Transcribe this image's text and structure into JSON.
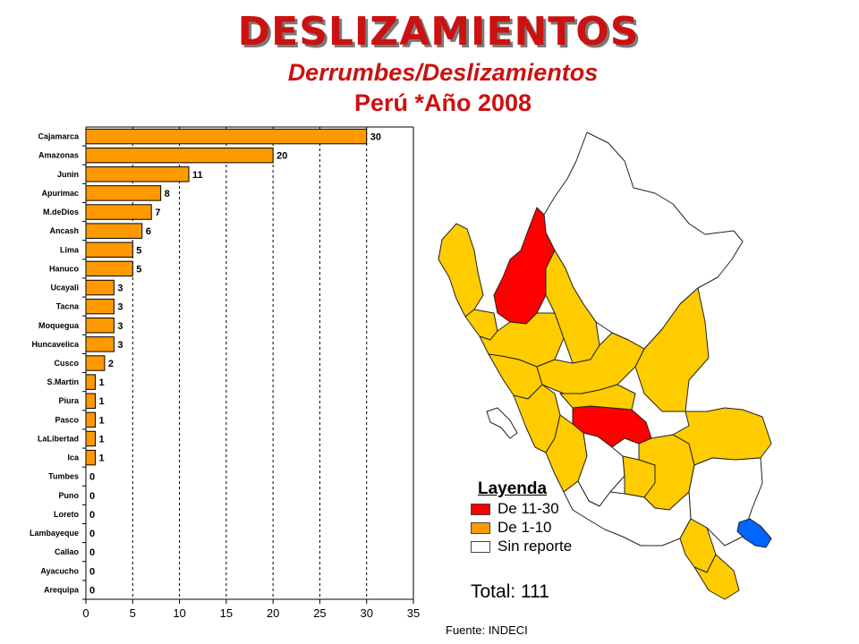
{
  "header": {
    "title": "DESLIZAMIENTOS",
    "subtitle": "Derrumbes/Deslizamientos",
    "subtitle2": "Perú *Año 2008"
  },
  "chart_data": {
    "type": "bar",
    "orientation": "horizontal",
    "categories": [
      "Cajamarca",
      "Amazonas",
      "Junin",
      "Apurimac",
      "M.deDios",
      "Ancash",
      "Lima",
      "Hanuco",
      "Ucayali",
      "Tacna",
      "Moquegua",
      "Huncavelica",
      "Cusco",
      "S.Martin",
      "Piura",
      "Pasco",
      "LaLibertad",
      "Ica",
      "Tumbes",
      "Puno",
      "Loreto",
      "Lambayeque",
      "Callao",
      "Ayacucho",
      "Arequipa"
    ],
    "values": [
      30,
      20,
      11,
      8,
      7,
      6,
      5,
      5,
      3,
      3,
      3,
      3,
      2,
      1,
      1,
      1,
      1,
      1,
      0,
      0,
      0,
      0,
      0,
      0,
      0
    ],
    "xlim": [
      0,
      35
    ],
    "xticks": [
      0,
      5,
      10,
      15,
      20,
      25,
      30,
      35
    ],
    "grid": "vertical dashed",
    "bar_color": "#ff9900"
  },
  "legend": {
    "title": "Layenda",
    "items": [
      {
        "label": "De 11-30",
        "color": "#ff0000"
      },
      {
        "label": "De 1-10",
        "color": "#ff9900"
      },
      {
        "label": "Sin reporte",
        "color": "#ffffff"
      }
    ]
  },
  "total": "Total: 111",
  "source": "Fuente: INDECI",
  "map_colors": {
    "high": "#ff0000",
    "mid": "#ffcc00",
    "none": "#ffffff",
    "lake": "#0066ff"
  }
}
